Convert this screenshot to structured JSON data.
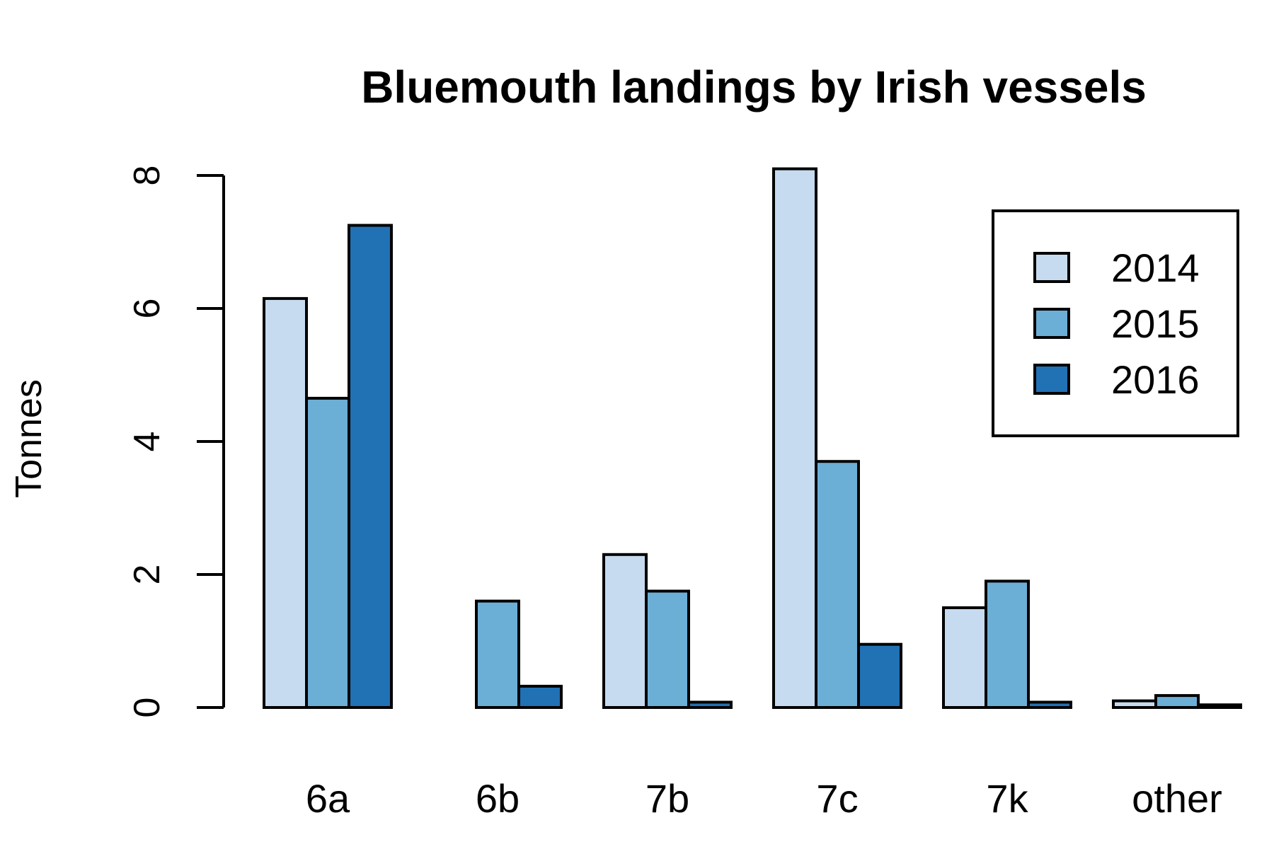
{
  "chart_data": {
    "type": "bar",
    "title": "Bluemouth landings by Irish vessels",
    "xlabel": "",
    "ylabel": "Tonnes",
    "categories": [
      "6a",
      "6b",
      "7b",
      "7c",
      "7k",
      "other"
    ],
    "series": [
      {
        "name": "2014",
        "color": "#c6dbef",
        "values": [
          6.15,
          0.0,
          2.3,
          8.1,
          1.5,
          0.1
        ]
      },
      {
        "name": "2015",
        "color": "#6baed6",
        "values": [
          4.65,
          1.6,
          1.75,
          3.7,
          1.9,
          0.18
        ]
      },
      {
        "name": "2016",
        "color": "#2171b5",
        "values": [
          7.25,
          0.32,
          0.08,
          0.95,
          0.08,
          0.04
        ]
      }
    ],
    "yticks": [
      0,
      2,
      4,
      6,
      8
    ],
    "ylim": [
      0,
      8.1
    ],
    "legend": {
      "position": "top-right",
      "entries": [
        "2014",
        "2015",
        "2016"
      ]
    },
    "grid": false
  }
}
